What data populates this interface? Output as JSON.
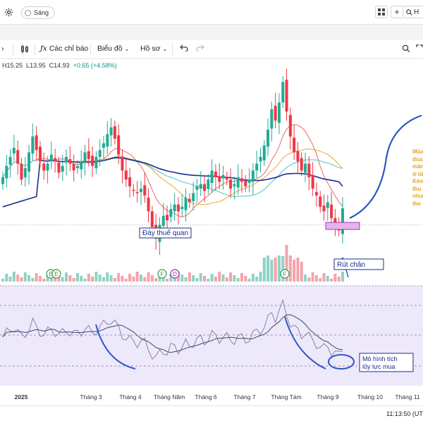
{
  "header": {
    "theme_toggle_label": "Sáng",
    "search_text": "H",
    "add_icon": "plus-icon",
    "layout_icon": "grid-icon",
    "settings_icon": "gear-icon"
  },
  "toolbar": {
    "indicators_label": "Các chỉ báo",
    "chart_type_label": "Biểu đồ",
    "profile_label": "Hồ sơ"
  },
  "ohlc": {
    "high_label": "H",
    "high": "15.25",
    "low_label": "L",
    "low": "13.95",
    "close_label": "C",
    "close": "14.93",
    "change": "+0.65 (+4.58%)"
  },
  "annotations": {
    "tariff_bottom": "Đáy thuế quan",
    "pin_bar": "Rút chân",
    "accumulation": "Mô hình tích lũy lực mua",
    "side_note_lines": [
      "Mùa",
      "doa",
      "mản",
      "ở tố",
      "Kéo",
      "thu",
      "như",
      "the"
    ]
  },
  "status": {
    "clock": "11:13:50 (UT"
  },
  "colors": {
    "up": "#22ab94",
    "down": "#f23645",
    "ma_long": "#1a2d8c",
    "ma_teal": "#4fc3c6",
    "ma_orange": "#f2a33a",
    "ma_red": "#e86a6a",
    "rsi_bg": "#ede9fb",
    "rsi_line": "#8c7fa8",
    "hand_drawn": "#2b56c7",
    "note_text": "#e8a21c"
  },
  "chart_data": {
    "type": "candlestick",
    "x_tick_labels": [
      "2025",
      "Tháng 3",
      "Tháng 4",
      "Tháng Năm",
      "Tháng 6",
      "Tháng 7",
      "Tháng Tám",
      "Tháng 9",
      "Tháng 10",
      "Tháng 11"
    ],
    "close_series": [
      16.3,
      16.8,
      17.2,
      17.6,
      16.9,
      16.2,
      16.7,
      17.4,
      18.1,
      17.5,
      17.0,
      16.6,
      16.9,
      17.3,
      17.0,
      16.5,
      16.8,
      17.2,
      16.9,
      16.6,
      16.8,
      17.0,
      17.4,
      17.1,
      16.8,
      17.2,
      17.5,
      17.8,
      18.2,
      18.5,
      18.0,
      17.3,
      16.6,
      16.2,
      15.9,
      15.7,
      15.6,
      15.8,
      15.5,
      14.8,
      14.1,
      13.6,
      14.2,
      14.6,
      14.4,
      14.9,
      15.1,
      14.8,
      15.0,
      15.4,
      15.2,
      15.6,
      15.9,
      16.0,
      15.7,
      16.2,
      16.6,
      16.3,
      16.1,
      16.4,
      16.2,
      15.8,
      16.0,
      16.3,
      16.1,
      15.9,
      16.2,
      16.6,
      16.9,
      17.2,
      17.7,
      18.4,
      19.3,
      18.8,
      19.6,
      20.5,
      19.2,
      18.1,
      17.4,
      17.0,
      16.6,
      16.9,
      16.3,
      15.8,
      15.5,
      15.0,
      14.8,
      15.2,
      14.5,
      14.2,
      13.95,
      14.93
    ],
    "ma_long_value_end": 15.9,
    "tariff_low": 13.1,
    "series": [
      {
        "name": "MA",
        "color": "#1a2d8c"
      },
      {
        "name": "RSI",
        "color": "#8c7fa8"
      }
    ],
    "event_markers": [
      "E",
      "E",
      "F",
      "D",
      "F"
    ]
  }
}
